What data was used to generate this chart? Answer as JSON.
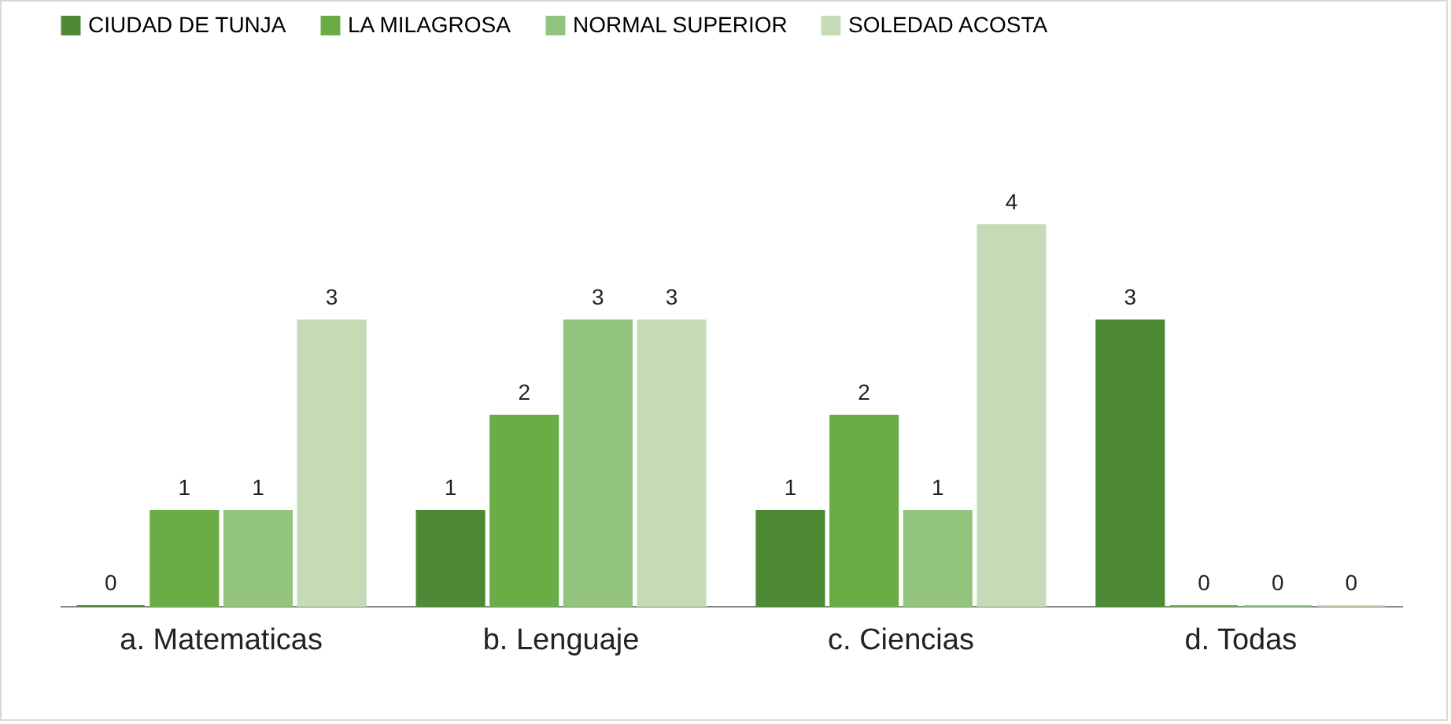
{
  "chart_data": {
    "type": "bar",
    "categories": [
      "a. Matematicas",
      "b. Lenguaje",
      "c. Ciencias",
      "d. Todas"
    ],
    "series": [
      {
        "name": "CIUDAD DE TUNJA",
        "color": "#4e8a35",
        "values": [
          0,
          1,
          1,
          3
        ]
      },
      {
        "name": "LA MILAGROSA",
        "color": "#6aac46",
        "values": [
          1,
          2,
          2,
          0
        ]
      },
      {
        "name": "NORMAL SUPERIOR",
        "color": "#93c47d",
        "values": [
          1,
          3,
          1,
          0
        ]
      },
      {
        "name": "SOLEDAD ACOSTA",
        "color": "#c4dbb6",
        "values": [
          3,
          3,
          4,
          0
        ]
      }
    ],
    "data_labels": true,
    "legend": "top",
    "grid": false
  }
}
